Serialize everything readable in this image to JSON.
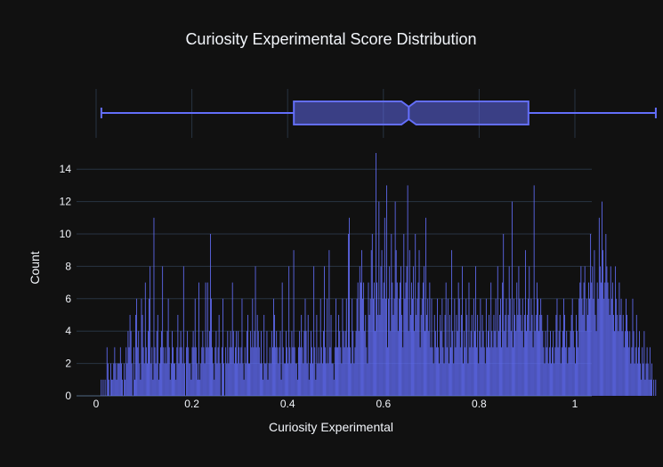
{
  "chart_data": {
    "type": "bar",
    "title": "Curiosity Experimental Score Distribution",
    "xlabel": "Curiosity Experimental",
    "ylabel": "Count",
    "xlim": [
      0,
      1
    ],
    "ylim": [
      0,
      15
    ],
    "x_ticks": [
      "0",
      "0.2",
      "0.4",
      "0.6",
      "0.8",
      "1"
    ],
    "y_ticks": [
      "0",
      "2",
      "4",
      "6",
      "8",
      "10",
      "12",
      "14"
    ],
    "grid": true,
    "bar_color": "#636efa",
    "background": "#111111",
    "bin_width": 0.002,
    "bin_start": 0.01,
    "values": [
      1,
      0,
      1,
      0,
      1,
      0,
      3,
      2,
      1,
      0,
      2,
      1,
      1,
      2,
      3,
      2,
      1,
      2,
      2,
      2,
      3,
      2,
      1,
      0,
      2,
      1,
      3,
      2,
      4,
      3,
      5,
      4,
      2,
      0,
      3,
      1,
      5,
      6,
      3,
      4,
      2,
      1,
      6,
      5,
      3,
      2,
      7,
      3,
      2,
      4,
      6,
      8,
      2,
      3,
      1,
      11,
      3,
      2,
      4,
      5,
      1,
      2,
      3,
      4,
      8,
      3,
      2,
      3,
      2,
      4,
      6,
      3,
      1,
      2,
      4,
      3,
      2,
      2,
      1,
      3,
      5,
      2,
      3,
      4,
      3,
      2,
      8,
      2,
      0,
      3,
      4,
      3,
      2,
      2,
      1,
      3,
      4,
      3,
      6,
      3,
      2,
      1,
      7,
      1,
      2,
      3,
      4,
      3,
      2,
      7,
      3,
      7,
      3,
      4,
      10,
      6,
      3,
      2,
      1,
      3,
      4,
      2,
      3,
      5,
      2,
      0,
      3,
      6,
      2,
      0,
      3,
      2,
      4,
      2,
      3,
      4,
      3,
      7,
      4,
      2,
      3,
      4,
      2,
      4,
      3,
      2,
      3,
      6,
      2,
      1,
      3,
      2,
      4,
      5,
      2,
      2,
      4,
      3,
      6,
      3,
      4,
      8,
      3,
      5,
      4,
      3,
      2,
      4,
      2,
      1,
      5,
      2,
      2,
      4,
      1,
      2,
      3,
      2,
      4,
      3,
      6,
      5,
      3,
      4,
      3,
      2,
      3,
      4,
      1,
      7,
      3,
      2,
      2,
      4,
      3,
      2,
      8,
      3,
      2,
      4,
      3,
      9,
      3,
      2,
      2,
      1,
      3,
      4,
      3,
      5,
      3,
      2,
      4,
      6,
      4,
      2,
      5,
      1,
      2,
      4,
      3,
      2,
      8,
      3,
      1,
      5,
      2,
      3,
      2,
      6,
      3,
      2,
      4,
      8,
      3,
      2,
      6,
      2,
      9,
      3,
      5,
      2,
      2,
      1,
      3,
      6,
      3,
      3,
      5,
      4,
      3,
      2,
      6,
      4,
      3,
      4,
      6,
      3,
      10,
      11,
      3,
      2,
      6,
      4,
      2,
      3,
      4,
      6,
      7,
      4,
      8,
      7,
      9,
      6,
      7,
      4,
      5,
      3,
      2,
      7,
      5,
      6,
      9,
      10,
      6,
      7,
      4,
      15,
      7,
      5,
      12,
      5,
      8,
      9,
      6,
      7,
      11,
      6,
      13,
      3,
      6,
      8,
      4,
      10,
      7,
      5,
      6,
      12,
      9,
      7,
      4,
      6,
      7,
      8,
      5,
      3,
      10,
      6,
      7,
      8,
      13,
      4,
      9,
      5,
      7,
      6,
      8,
      4,
      10,
      5,
      6,
      7,
      9,
      3,
      5,
      6,
      7,
      8,
      4,
      11,
      5,
      6,
      4,
      7,
      3,
      6,
      3,
      2,
      5,
      4,
      3,
      6,
      3,
      2,
      5,
      4,
      6,
      3,
      2,
      5,
      7,
      3,
      6,
      2,
      5,
      3,
      9,
      4,
      2,
      6,
      3,
      5,
      4,
      7,
      6,
      3,
      5,
      8,
      2,
      4,
      3,
      6,
      5,
      2,
      7,
      3,
      4,
      5,
      3,
      6,
      4,
      8,
      3,
      5,
      2,
      4,
      6,
      3,
      5,
      4,
      3,
      2,
      6,
      3,
      4,
      5,
      3,
      7,
      4,
      3,
      5,
      4,
      6,
      3,
      8,
      4,
      5,
      6,
      3,
      7,
      10,
      4,
      5,
      6,
      3,
      5,
      8,
      6,
      4,
      12,
      3,
      6,
      5,
      4,
      7,
      5,
      8,
      6,
      5,
      4,
      6,
      3,
      5,
      9,
      4,
      5,
      6,
      8,
      4,
      6,
      5,
      3,
      13,
      4,
      5,
      7,
      6,
      4,
      5,
      6,
      5,
      4,
      3,
      2,
      4,
      3,
      5,
      2,
      3,
      4,
      2,
      3,
      4,
      2,
      3,
      5,
      6,
      3,
      4,
      5,
      2,
      3,
      4,
      6,
      5,
      3,
      4,
      2,
      3,
      3,
      4,
      5,
      6,
      4,
      3,
      2,
      5,
      4,
      3,
      6,
      7,
      8,
      6,
      5,
      7,
      8,
      4,
      6,
      5,
      7,
      6,
      10,
      7,
      8,
      6,
      9,
      5,
      4,
      7,
      6,
      11,
      8,
      7,
      12,
      9,
      6,
      7,
      10,
      8,
      7,
      6,
      5,
      8,
      6,
      7,
      5,
      4,
      8,
      6,
      5,
      4,
      7,
      5,
      6,
      4,
      5,
      3,
      4,
      6,
      5,
      4,
      3,
      4,
      2,
      3,
      6,
      4,
      2,
      3,
      5,
      2,
      3,
      4,
      2,
      1,
      3,
      2,
      4,
      1,
      2,
      3,
      2,
      1,
      3,
      1,
      2,
      0,
      1,
      0,
      1
    ]
  }
}
